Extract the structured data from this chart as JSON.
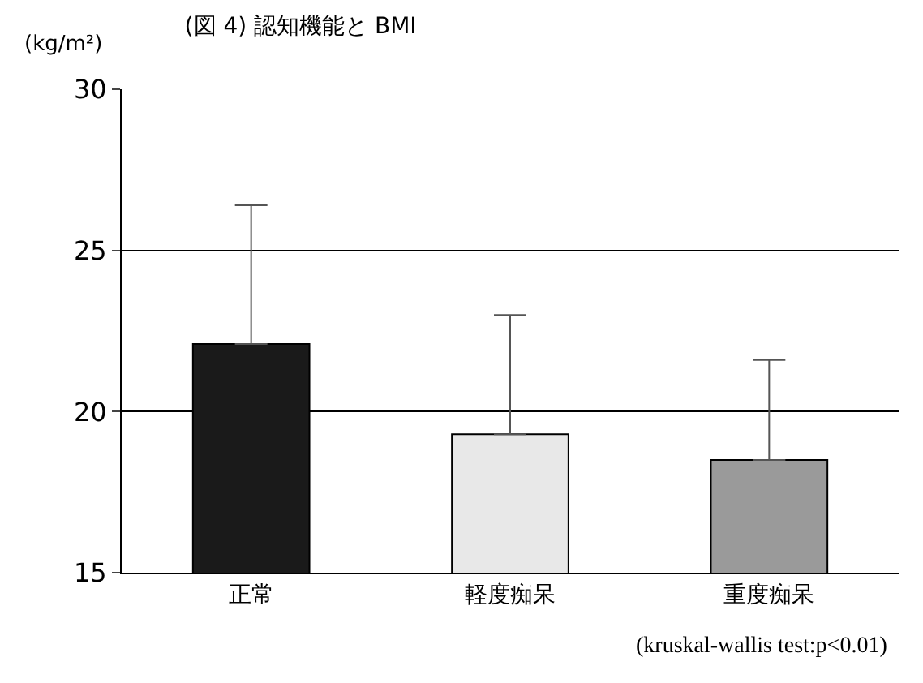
{
  "chart_data": {
    "type": "bar",
    "title": "(図 4) 認知機能と BMI",
    "ylabel": "(kg/m²)",
    "categories": [
      "正常",
      "軽度痴呆",
      "重度痴呆"
    ],
    "values": [
      22.1,
      19.3,
      18.5
    ],
    "colors": [
      "#1a1a1a",
      "#e8e8e8",
      "#9a9a9a"
    ],
    "errors": [
      [
        22.1,
        26.4
      ],
      [
        19.3,
        23.0
      ],
      [
        18.5,
        21.6
      ]
    ],
    "ylim": [
      15,
      30
    ],
    "yticks": [
      15,
      20,
      25,
      30
    ],
    "grid": "y",
    "legend": false,
    "annotations": [
      "(kruskal-wallis test:p<0.01)"
    ]
  }
}
